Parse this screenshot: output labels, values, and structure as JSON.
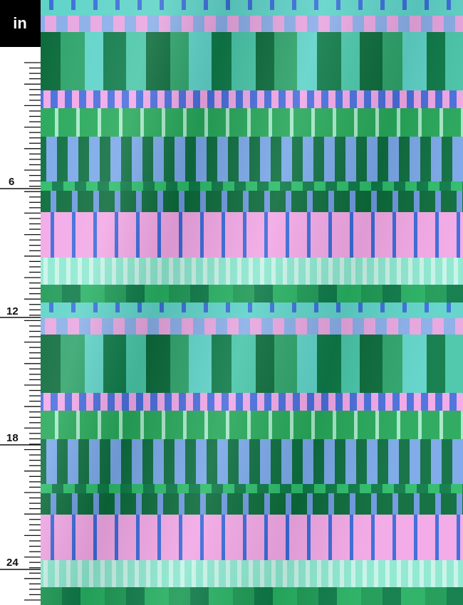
{
  "ruler": {
    "unit": "in",
    "labels": [
      "6",
      "12",
      "18",
      "24"
    ]
  }
}
